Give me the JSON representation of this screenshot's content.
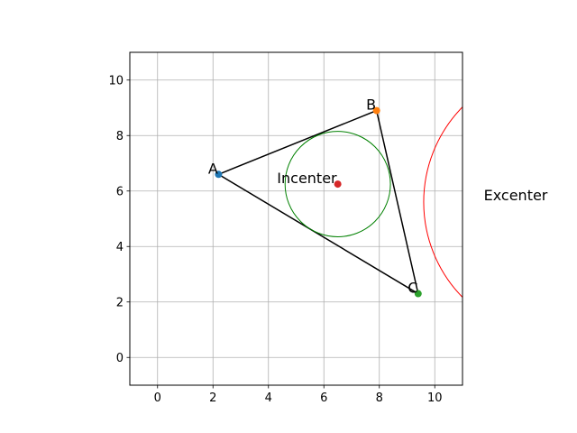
{
  "chart_data": {
    "type": "scatter",
    "title": "",
    "xlabel": "",
    "ylabel": "",
    "xlim": [
      -1,
      11
    ],
    "ylim": [
      -1,
      11
    ],
    "grid": true,
    "x_ticks": [
      0,
      2,
      4,
      6,
      8,
      10
    ],
    "y_ticks": [
      0,
      2,
      4,
      6,
      8,
      10
    ],
    "tick_label_color": "#000000",
    "grid_color": "#b0b0b0",
    "points": [
      {
        "label": "A",
        "x": 2.2,
        "y": 6.6,
        "color": "#1f77b4"
      },
      {
        "label": "B",
        "x": 7.9,
        "y": 8.9,
        "color": "#ff7f0e"
      },
      {
        "label": "C",
        "x": 9.4,
        "y": 2.3,
        "color": "#2ca02c"
      }
    ],
    "triangle": {
      "vertices": [
        "A",
        "B",
        "C"
      ],
      "color": "#000000"
    },
    "incenter": {
      "label": "Incenter",
      "x": 6.5,
      "y": 6.25,
      "radius": 1.9,
      "color": "#d62728",
      "circle_color": "#008000"
    },
    "excenter": {
      "label": "Excenter",
      "x": 14.5,
      "y": 5.6,
      "radius": 4.9,
      "circle_color": "#ff0000"
    }
  }
}
